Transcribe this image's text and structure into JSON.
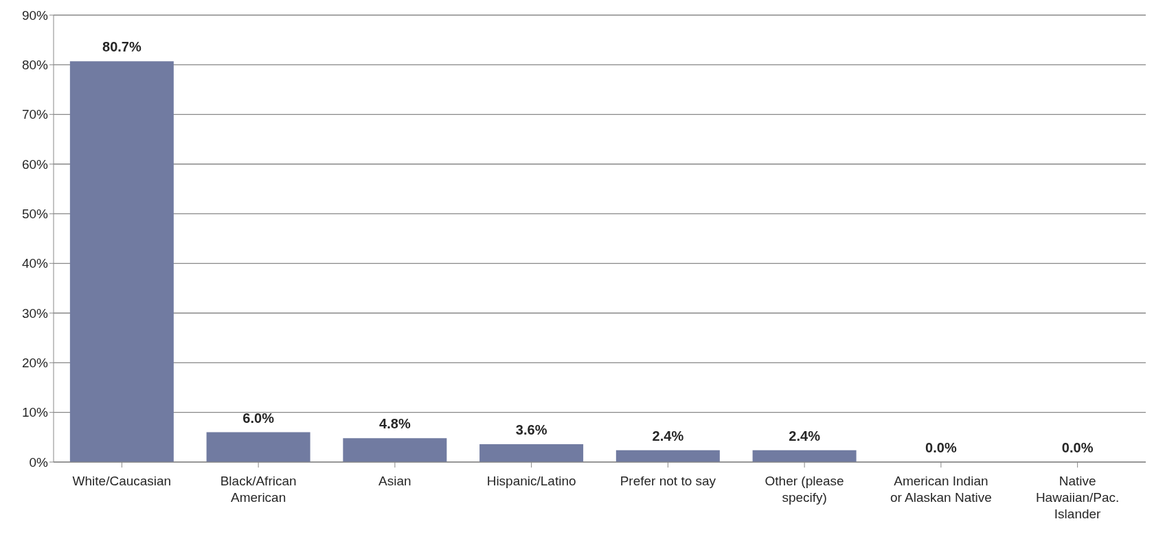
{
  "chart_data": {
    "type": "bar",
    "categories": [
      "White/Caucasian",
      "Black/African American",
      "Asian",
      "Hispanic/Latino",
      "Prefer not to say",
      "Other (please specify)",
      "American Indian or Alaskan Native",
      "Native Hawaiian/Pac. Islander"
    ],
    "values": [
      80.7,
      6.0,
      4.8,
      3.6,
      2.4,
      2.4,
      0.0,
      0.0
    ],
    "value_labels": [
      "80.7%",
      "6.0%",
      "4.8%",
      "3.6%",
      "2.4%",
      "2.4%",
      "0.0%",
      "0.0%"
    ],
    "color": "#717ba1",
    "ylim": [
      0,
      90
    ],
    "yticks": [
      {
        "value": 0,
        "label": "0%"
      },
      {
        "value": 10,
        "label": "10%"
      },
      {
        "value": 20,
        "label": "20%"
      },
      {
        "value": 30,
        "label": "30%"
      },
      {
        "value": 40,
        "label": "40%"
      },
      {
        "value": 50,
        "label": "50%"
      },
      {
        "value": 60,
        "label": "60%"
      },
      {
        "value": 70,
        "label": "70%"
      },
      {
        "value": 80,
        "label": "80%"
      },
      {
        "value": 90,
        "label": "90%"
      }
    ],
    "grid": "y"
  }
}
